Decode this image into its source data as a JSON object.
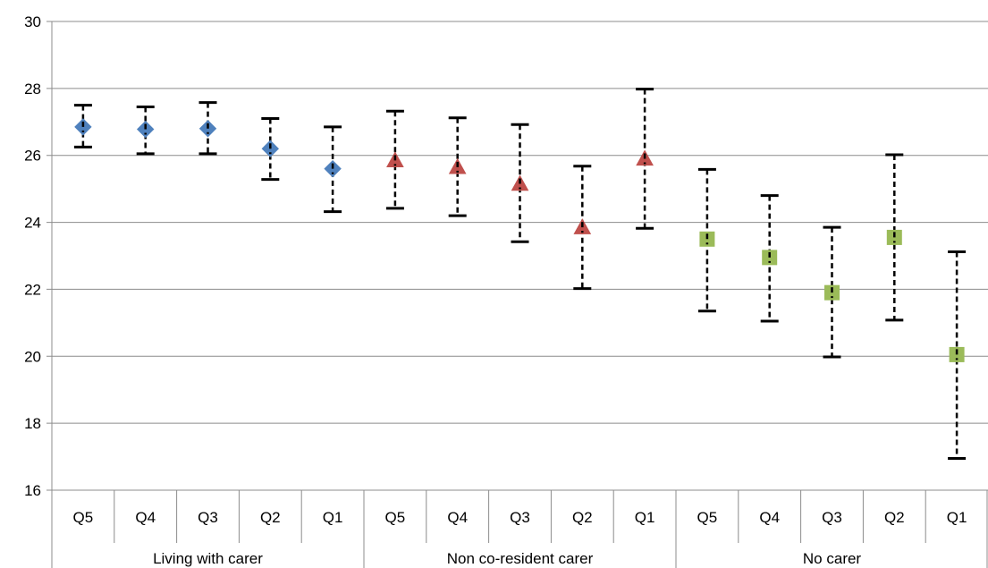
{
  "chart_data": {
    "type": "scatter",
    "title": "",
    "xlabel": "",
    "ylabel": "",
    "ylim": [
      16,
      30
    ],
    "yticks": [
      16,
      18,
      20,
      22,
      24,
      26,
      28,
      30
    ],
    "grid": true,
    "legend": "none",
    "categories": [
      "Q5",
      "Q4",
      "Q3",
      "Q2",
      "Q1",
      "Q5",
      "Q4",
      "Q3",
      "Q2",
      "Q1",
      "Q5",
      "Q4",
      "Q3",
      "Q2",
      "Q1"
    ],
    "groups": [
      {
        "label": "Living with carer",
        "span": 5
      },
      {
        "label": "Non co-resident carer",
        "span": 5
      },
      {
        "label": "No carer",
        "span": 5
      }
    ],
    "series": [
      {
        "marker": "diamond",
        "color": "#4f81bd",
        "indices": [
          0,
          1,
          2,
          3,
          4
        ],
        "values": [
          26.85,
          26.78,
          26.8,
          26.2,
          25.6
        ],
        "lower": [
          26.25,
          26.05,
          26.05,
          25.28,
          24.32
        ],
        "upper": [
          27.5,
          27.45,
          27.58,
          27.1,
          26.85
        ]
      },
      {
        "marker": "triangle",
        "color": "#c0504d",
        "indices": [
          5,
          6,
          7,
          8,
          9
        ],
        "values": [
          25.85,
          25.65,
          25.15,
          23.85,
          25.9
        ],
        "lower": [
          24.42,
          24.2,
          23.42,
          22.02,
          23.82
        ],
        "upper": [
          27.32,
          27.12,
          26.92,
          25.68,
          27.98
        ]
      },
      {
        "marker": "square",
        "color": "#9bbb59",
        "indices": [
          10,
          11,
          12,
          13,
          14
        ],
        "values": [
          23.5,
          22.95,
          21.9,
          23.55,
          20.05
        ],
        "lower": [
          21.35,
          21.05,
          19.98,
          21.08,
          16.95
        ],
        "upper": [
          25.58,
          24.8,
          23.85,
          26.02,
          23.12
        ]
      }
    ]
  }
}
